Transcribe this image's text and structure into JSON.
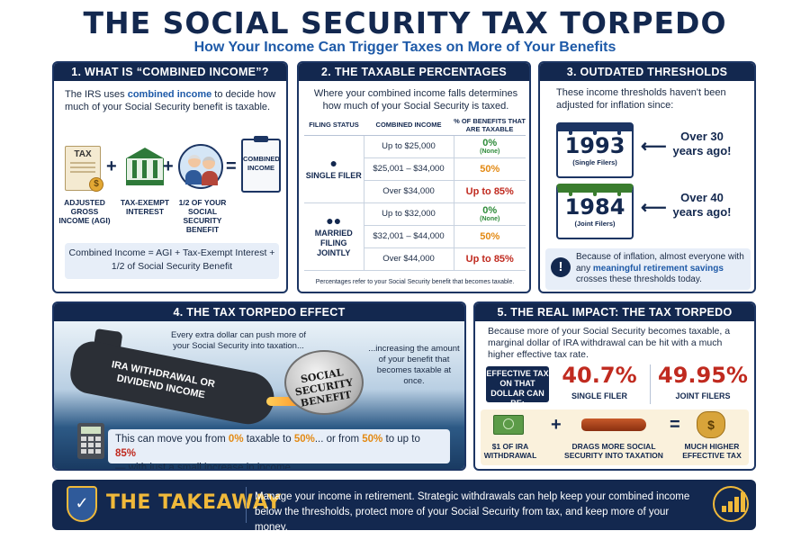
{
  "header": {
    "title": "THE SOCIAL SECURITY TAX TORPEDO",
    "subtitle": "How Your Income Can Trigger Taxes on More of Your Benefits"
  },
  "panel1": {
    "heading": "1. WHAT IS “COMBINED INCOME”?",
    "intro_before": "The IRS uses",
    "intro_highlight": "combined income",
    "intro_after": "to decide how much of your Social Security benefit is taxable.",
    "tax_doc_label": "TAX",
    "clipboard_label": "COMBINED INCOME",
    "labels": [
      "ADJUSTED GROSS INCOME (AGI)",
      "TAX-EXEMPT INTEREST",
      "1/2 OF YOUR SOCIAL SECURITY BENEFIT"
    ],
    "formula": "Combined Income = AGI + Tax-Exempt Interest + 1/2 of Social Security Benefit"
  },
  "panel2": {
    "heading": "2. THE TAXABLE PERCENTAGES",
    "intro": "Where your combined income falls determines how much of your Social Security is taxed.",
    "columns": [
      "FILING STATUS",
      "COMBINED INCOME",
      "% OF BENEFITS THAT ARE TAXABLE"
    ],
    "single_label": "SINGLE FILER",
    "married_label": "MARRIED FILING JOINTLY",
    "single_rows": [
      {
        "income": "Up to $25,000",
        "pct": "0%",
        "note": "(None)"
      },
      {
        "income": "$25,001 – $34,000",
        "pct": "50%",
        "note": ""
      },
      {
        "income": "Over $34,000",
        "pct": "Up to 85%",
        "note": ""
      }
    ],
    "married_rows": [
      {
        "income": "Up to $32,000",
        "pct": "0%",
        "note": "(None)"
      },
      {
        "income": "$32,001 – $44,000",
        "pct": "50%",
        "note": ""
      },
      {
        "income": "Over $44,000",
        "pct": "Up to 85%",
        "note": ""
      }
    ],
    "footnote": "Percentages refer to your Social Security benefit that becomes taxable."
  },
  "panel3": {
    "heading": "3. OUTDATED THRESHOLDS",
    "intro": "These income thresholds haven't been adjusted for inflation since:",
    "year1": "1993",
    "year1_sub": "(Single Filers)",
    "ago1": "Over 30 years ago!",
    "year2": "1984",
    "year2_sub": "(Joint Filers)",
    "ago2": "Over 40 years ago!",
    "note_before": "Because of inflation, almost everyone with any",
    "note_highlight": "meaningful retirement savings",
    "note_after": "crosses these thresholds today."
  },
  "panel4": {
    "heading": "4. THE TAX TORPEDO EFFECT",
    "sub_label": "IRA WITHDRAWAL OR DIVIDEND INCOME",
    "mine_label": "SOCIAL SECURITY BENEFIT",
    "text_left": "Every extra dollar can push more of your Social Security into taxation...",
    "text_right": "...increasing the amount of your benefit that becomes taxable at once.",
    "move_1": "This can move you from",
    "move_0pct": "0%",
    "move_2": "taxable to",
    "move_50pct": "50%",
    "move_3": "... or from",
    "move_50pct_b": "50%",
    "move_4": "to up to",
    "move_85pct": "85%",
    "move_5": "— with just a small increase in income."
  },
  "panel5": {
    "heading": "5. THE REAL IMPACT: THE TAX TORPEDO",
    "intro": "Because more of your Social Security becomes taxable, a marginal dollar of IRA withdrawal can be hit with a much higher effective tax rate.",
    "effective_label": "EFFECTIVE TAX ON THAT DOLLAR CAN BE:",
    "single_pct": "40.7%",
    "single_label": "SINGLE FILER",
    "joint_pct": "49.95%",
    "joint_label": "JOINT FILERS",
    "bottom_labels": [
      "$1 OF IRA WITHDRAWAL",
      "DRAGS MORE SOCIAL SECURITY INTO TAXATION",
      "MUCH HIGHER EFFECTIVE TAX"
    ]
  },
  "takeaway": {
    "title": "THE TAKEAWAY",
    "text": "Manage your income in retirement. Strategic withdrawals can help keep your combined income below the thresholds, protect more of your Social Security from tax, and keep more of your money."
  },
  "icons": [
    "tax-document-icon",
    "coin-icon",
    "bank-icon",
    "couple-icon",
    "clipboard-icon",
    "people-icon",
    "calendar-icon",
    "exclamation-icon",
    "submarine-icon",
    "mine-icon",
    "calculator-icon",
    "money-icon",
    "torpedo-icon",
    "money-bag-icon",
    "shield-check-icon",
    "growth-chart-icon"
  ],
  "colors": {
    "navy": "#13284f",
    "blue": "#1e5aa8",
    "green": "#2e8b3a",
    "orange": "#e38a14",
    "red": "#c02a1f",
    "gold": "#f0b93a"
  }
}
